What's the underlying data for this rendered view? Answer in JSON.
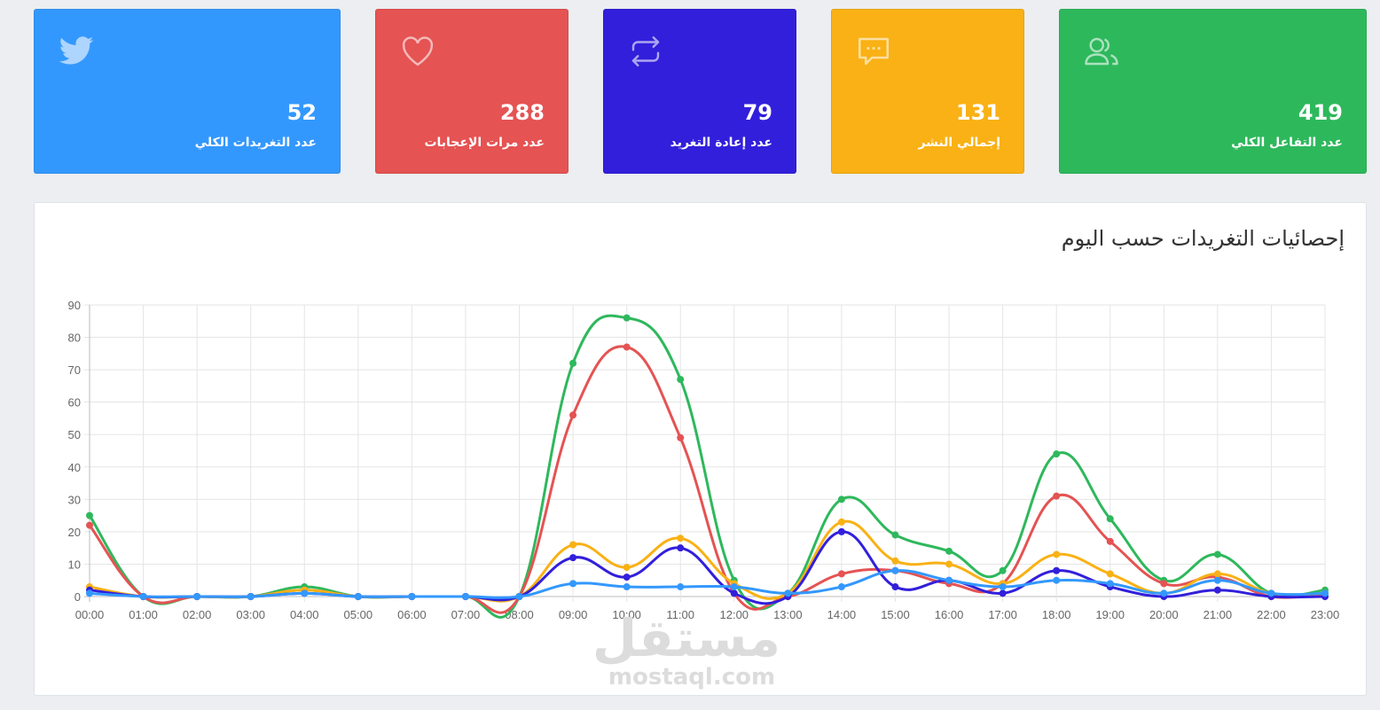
{
  "cards": [
    {
      "value": "52",
      "label": "عدد التغريدات الكلي",
      "color": "#3398fd",
      "icon": "twitter-icon"
    },
    {
      "value": "288",
      "label": "عدد مرات الإعجابات",
      "color": "#e55353",
      "icon": "heart-icon"
    },
    {
      "value": "79",
      "label": "عدد إعادة التغريد",
      "color": "#321fdb",
      "icon": "retweet-icon"
    },
    {
      "value": "131",
      "label": "إجمالي النشر",
      "color": "#f9b115",
      "icon": "comment-icon"
    },
    {
      "value": "419",
      "label": "عدد التفاعل الكلي",
      "color": "#2eb85c",
      "icon": "users-icon"
    }
  ],
  "panel": {
    "title": "إحصائيات التغريدات حسب اليوم"
  },
  "watermark": {
    "ar": "مستقل",
    "en": "mostaql.com"
  },
  "chart_data": {
    "type": "line",
    "title": "",
    "xlabel": "",
    "ylabel": "",
    "ylim": [
      0,
      90
    ],
    "yticks": [
      0,
      10,
      20,
      30,
      40,
      50,
      60,
      70,
      80,
      90
    ],
    "grid": true,
    "categories": [
      "00:00",
      "01:00",
      "02:00",
      "03:00",
      "04:00",
      "05:00",
      "06:00",
      "07:00",
      "08:00",
      "09:00",
      "10:00",
      "11:00",
      "12:00",
      "13:00",
      "14:00",
      "15:00",
      "16:00",
      "17:00",
      "18:00",
      "19:00",
      "20:00",
      "21:00",
      "22:00",
      "23:00"
    ],
    "series": [
      {
        "color": "#2eb85c",
        "values": [
          25,
          0,
          0,
          0,
          3,
          0,
          0,
          0,
          0,
          72,
          86,
          67,
          5,
          1,
          30,
          19,
          14,
          8,
          44,
          24,
          5,
          13,
          1,
          2
        ]
      },
      {
        "color": "#e55353",
        "values": [
          22,
          0,
          0,
          0,
          2,
          0,
          0,
          0,
          0,
          56,
          77,
          49,
          1,
          0,
          7,
          8,
          4,
          4,
          31,
          17,
          4,
          6,
          0,
          1
        ]
      },
      {
        "color": "#f9b115",
        "values": [
          3,
          0,
          0,
          0,
          2,
          0,
          0,
          0,
          0,
          16,
          9,
          18,
          4,
          1,
          23,
          11,
          10,
          4,
          13,
          7,
          1,
          7,
          1,
          1
        ]
      },
      {
        "color": "#321fdb",
        "values": [
          2,
          0,
          0,
          0,
          1,
          0,
          0,
          0,
          0,
          12,
          6,
          15,
          1,
          0,
          20,
          3,
          5,
          1,
          8,
          3,
          0,
          2,
          0,
          0
        ]
      },
      {
        "color": "#3398fd",
        "values": [
          1,
          0,
          0,
          0,
          1,
          0,
          0,
          0,
          0,
          4,
          3,
          3,
          3,
          1,
          3,
          8,
          5,
          3,
          5,
          4,
          1,
          5,
          1,
          1
        ]
      }
    ]
  }
}
